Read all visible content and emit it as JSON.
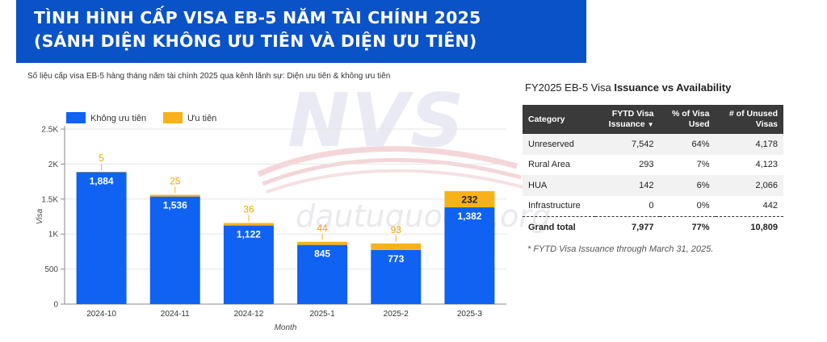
{
  "header": {
    "title_line1": "TÌNH HÌNH CẤP VISA EB-5 NĂM TÀI CHÍNH 2025",
    "title_line2": "(SÁNH DIỆN KHÔNG ƯU TIÊN VÀ DIỆN ƯU TIÊN)",
    "background_color": "#0a52c7"
  },
  "watermark": {
    "letters": "NVS",
    "text": "dautuquocte.org"
  },
  "chart_data": {
    "type": "bar",
    "stacked": true,
    "subtitle": "Số liệu cấp visa EB-5 hàng tháng năm tài chính 2025 qua kênh lãnh sự: Diện ưu tiên & không ưu tiên",
    "categories": [
      "2024-10",
      "2024-11",
      "2024-12",
      "2025-1",
      "2025-2",
      "2025-3"
    ],
    "series": [
      {
        "name": "Không ưu tiên",
        "color": "#0f62f2",
        "values": [
          1884,
          1536,
          1122,
          845,
          773,
          1382
        ]
      },
      {
        "name": "Ưu tiên",
        "color": "#f7b21a",
        "values": [
          5,
          25,
          36,
          44,
          93,
          232
        ]
      }
    ],
    "xlabel": "Month",
    "ylabel": "Visa",
    "ylim": [
      0,
      2500
    ],
    "yticks": [
      0,
      500,
      1000,
      1500,
      2000,
      2500
    ],
    "ytick_labels": [
      "0",
      "500",
      "1K",
      "1.5K",
      "2K",
      "2.5K"
    ],
    "grid": true,
    "legend_position": "top-left"
  },
  "table": {
    "title_prefix": "FY2025 EB-5 Visa ",
    "title_bold": "Issuance vs Availability",
    "headers": {
      "category": "Category",
      "issuance_1": "FYTD Visa",
      "issuance_2": "Issuance",
      "pct_1": "% of Visa",
      "pct_2": "Used",
      "unused_1": "# of Unused",
      "unused_2": "Visas",
      "sort_icon": "▼"
    },
    "rows": [
      {
        "category": "Unreserved",
        "issuance": "7,542",
        "pct": "64%",
        "unused": "4,178"
      },
      {
        "category": "Rural Area",
        "issuance": "293",
        "pct": "7%",
        "unused": "4,123"
      },
      {
        "category": "HUA",
        "issuance": "142",
        "pct": "6%",
        "unused": "2,066"
      },
      {
        "category": "Infrastructure",
        "issuance": "0",
        "pct": "0%",
        "unused": "442"
      }
    ],
    "total": {
      "category": "Grand total",
      "issuance": "7,977",
      "pct": "77%",
      "unused": "10,809"
    },
    "footnote": "* FYTD Visa Issuance through March 31, 2025."
  }
}
